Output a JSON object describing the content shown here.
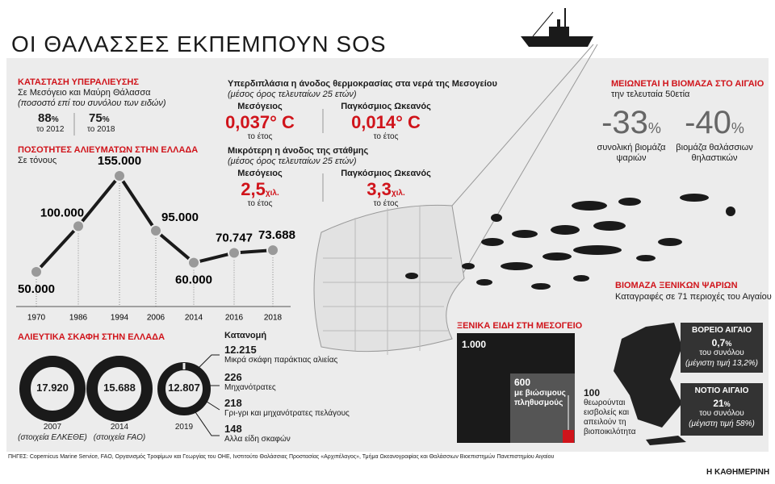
{
  "title": "ΟΙ ΘΑΛΑΣΣΕΣ ΕΚΠΕΜΠΟΥΝ SOS",
  "overfishing": {
    "heading": "ΚΑΤΑΣΤΑΣΗ ΥΠΕΡΑΛΙΕΥΣΗΣ",
    "subtitle": "Σε Μεσόγειο και Μαύρη Θάλασσα",
    "note": "(ποσοστό επί του συνόλου των ειδών)",
    "items": [
      {
        "value": "88",
        "unit": "%",
        "label": "το 2012"
      },
      {
        "value": "75",
        "unit": "%",
        "label": "το 2018"
      }
    ]
  },
  "chart_data": {
    "type": "line",
    "title": "ΠΟΣΟΤΗΤΕΣ ΑΛΙΕΥΜΑΤΩΝ ΣΤΗΝ ΕΛΛΑΔΑ",
    "subtitle": "Σε τόνους",
    "categories": [
      "1970",
      "1986",
      "1994",
      "2006",
      "2014",
      "2016",
      "2018"
    ],
    "values": [
      50000,
      100000,
      155000,
      95000,
      60000,
      70747,
      73688
    ],
    "value_labels": [
      "50.000",
      "100.000",
      "155.000",
      "95.000",
      "60.000",
      "70.747",
      "73.688"
    ],
    "color": "#1a1a1a"
  },
  "vessels": {
    "heading": "ΑΛΙΕΥΤΙΚΑ ΣΚΑΦΗ ΣΤΗΝ ΕΛΛΑΔΑ",
    "rings": [
      {
        "value": "17.920",
        "year": "2007",
        "note": "(στοιχεία ΕΛΚΕΘΕ)"
      },
      {
        "value": "15.688",
        "year": "2014",
        "note": "(στοιχεία FAO)"
      },
      {
        "value": "12.807",
        "year": "2019",
        "note": ""
      }
    ],
    "breakdown_heading": "Κατανομή",
    "breakdown": [
      {
        "value": "12.215",
        "label": "Μικρά σκάφη παράκτιας αλιείας"
      },
      {
        "value": "226",
        "label": "Μηχανότρατες"
      },
      {
        "value": "218",
        "label": "Γρι-γρι και μηχανότρατες πελάγους"
      },
      {
        "value": "148",
        "label": "Αλλα είδη σκαφών"
      }
    ]
  },
  "temperature": {
    "heading": "Υπερδιπλάσια η άνοδος θερμοκρασίας στα νερά της Μεσογείου",
    "note": "(μέσος όρος τελευταίων 25 ετών)",
    "items": [
      {
        "label": "Μεσόγειος",
        "value": "0,037° C",
        "period": "το έτος"
      },
      {
        "label": "Παγκόσμιος Ωκεανός",
        "value": "0,014° C",
        "period": "το έτος"
      }
    ]
  },
  "sea_level": {
    "heading": "Μικρότερη η άνοδος της στάθμης",
    "note": "(μέσος όρος τελευταίων 25 ετών)",
    "items": [
      {
        "label": "Μεσόγειος",
        "value": "2,5",
        "unit": "χιλ.",
        "period": "το έτος"
      },
      {
        "label": "Παγκόσμιος Ωκεανός",
        "value": "3,3",
        "unit": "χιλ.",
        "period": "το έτος"
      }
    ]
  },
  "biomass": {
    "heading": "ΜΕΙΩΝΕΤΑΙ Η ΒΙΟΜΑΖΑ ΣΤΟ ΑΙΓΑΙΟ",
    "subtitle": "την τελευταία 50ετία",
    "items": [
      {
        "value": "-33",
        "unit": "%",
        "label": "συνολική βιομάζα ψαριών"
      },
      {
        "value": "-40",
        "unit": "%",
        "label": "βιομάζα θαλάσσιων θηλαστικών"
      }
    ]
  },
  "alien_species": {
    "heading": "ΞΕΝΙΚΑ ΕΙΔΗ ΣΤΗ ΜΕΣΟΓΕΙΟ",
    "total": "1.000",
    "sustainable": "600",
    "sustainable_label": "με βιώσιμους πληθυσμούς",
    "invasive": "100",
    "invasive_label": "θεωρούνται εισβολείς και απειλούν τη βιοποικιλότητα"
  },
  "alien_biomass": {
    "heading": "ΒΙΟΜΑΖΑ ΞΕΝΙΚΩΝ ΨΑΡΙΩΝ",
    "subtitle": "Καταγραφές σε 71 περιοχές του Αιγαίου",
    "regions": [
      {
        "name": "ΒΟΡΕΙΟ ΑΙΓΑΙΟ",
        "value": "0,7",
        "unit": "%",
        "label": "του συνόλου",
        "note": "(μέγιστη τιμή 13,2%)"
      },
      {
        "name": "ΝΟΤΙΟ ΑΙΓΑΙΟ",
        "value": "21",
        "unit": "%",
        "label": "του συνόλου",
        "note": "(μέγιστη τιμή 58%)"
      }
    ]
  },
  "sources": "ΠΗΓΕΣ: Copernicus Marine Service, FAO, Οργανισμός Τροφίμων και Γεωργίας του ΟΗΕ, Ινστιτούτο Θαλάσσιας Προστασίας «Αρχιπέλαγος», Τμήμα Ωκεανογραφίας και Θαλάσσιων Βιοεπιστημών Πανεπιστημίου Αιγαίου",
  "publisher": "Η ΚΑΘΗΜΕΡΙΝΗ"
}
